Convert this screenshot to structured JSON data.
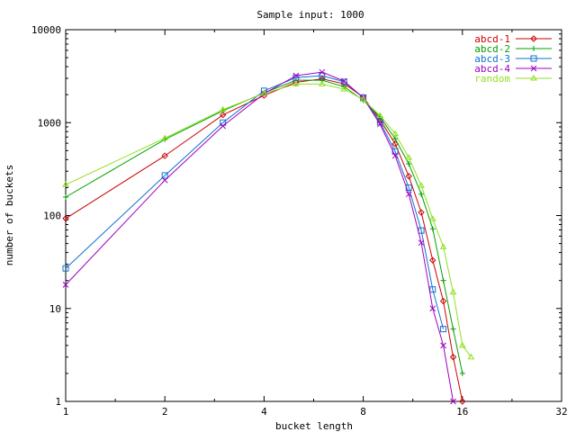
{
  "chart_data": {
    "type": "line",
    "title": "Sample input: 1000",
    "xlabel": "bucket length",
    "ylabel": "number of buckets",
    "x_scale": "log2",
    "y_scale": "log10",
    "xlim": [
      1,
      32
    ],
    "ylim": [
      1,
      10000
    ],
    "x_ticks": [
      1,
      2,
      4,
      8,
      16,
      32
    ],
    "x_tick_labels": [
      "1",
      "2",
      "4",
      "8",
      "16",
      "32"
    ],
    "y_ticks": [
      1,
      10,
      100,
      1000,
      10000
    ],
    "y_tick_labels": [
      "1",
      "10",
      "100",
      "1000",
      "10000"
    ],
    "grid": false,
    "legend_position": "top-right",
    "series": [
      {
        "name": "abcd-1",
        "color": "#d00000",
        "marker": "diamond",
        "x": [
          1,
          2,
          3,
          4,
          5,
          6,
          7,
          8,
          9,
          10,
          11,
          12,
          13,
          14,
          15,
          16
        ],
        "y": [
          93,
          440,
          1210,
          1960,
          2720,
          2960,
          2620,
          1880,
          1070,
          590,
          265,
          108,
          33,
          12,
          3,
          1
        ]
      },
      {
        "name": "abcd-2",
        "color": "#00a000",
        "marker": "plus",
        "x": [
          1,
          2,
          3,
          4,
          5,
          6,
          7,
          8,
          9,
          10,
          11,
          12,
          13,
          14,
          15,
          16
        ],
        "y": [
          158,
          660,
          1340,
          2090,
          2860,
          2860,
          2430,
          1740,
          1150,
          670,
          360,
          170,
          72,
          20,
          6,
          2
        ]
      },
      {
        "name": "abcd-3",
        "color": "#1070d0",
        "marker": "square",
        "x": [
          1,
          2,
          3,
          4,
          5,
          6,
          7,
          8,
          9,
          10,
          11,
          12,
          13,
          14
        ],
        "y": [
          27,
          270,
          1000,
          2200,
          3050,
          3200,
          2750,
          1860,
          1010,
          490,
          200,
          69,
          16,
          6
        ]
      },
      {
        "name": "abcd-4",
        "color": "#a000c0",
        "marker": "cross",
        "x": [
          1,
          2,
          3,
          4,
          5,
          6,
          7,
          8,
          9,
          10,
          11,
          12,
          13,
          14,
          15
        ],
        "y": [
          18,
          240,
          920,
          2050,
          3200,
          3500,
          2800,
          1850,
          960,
          440,
          170,
          51,
          10,
          4,
          1
        ]
      },
      {
        "name": "random",
        "color": "#90e020",
        "marker": "triangle",
        "x": [
          1,
          2,
          3,
          4,
          5,
          6,
          7,
          8,
          9,
          10,
          11,
          12,
          13,
          14,
          15,
          16,
          17
        ],
        "y": [
          215,
          680,
          1380,
          2060,
          2600,
          2600,
          2290,
          1770,
          1190,
          760,
          420,
          210,
          92,
          46,
          15,
          4,
          3
        ]
      }
    ]
  }
}
